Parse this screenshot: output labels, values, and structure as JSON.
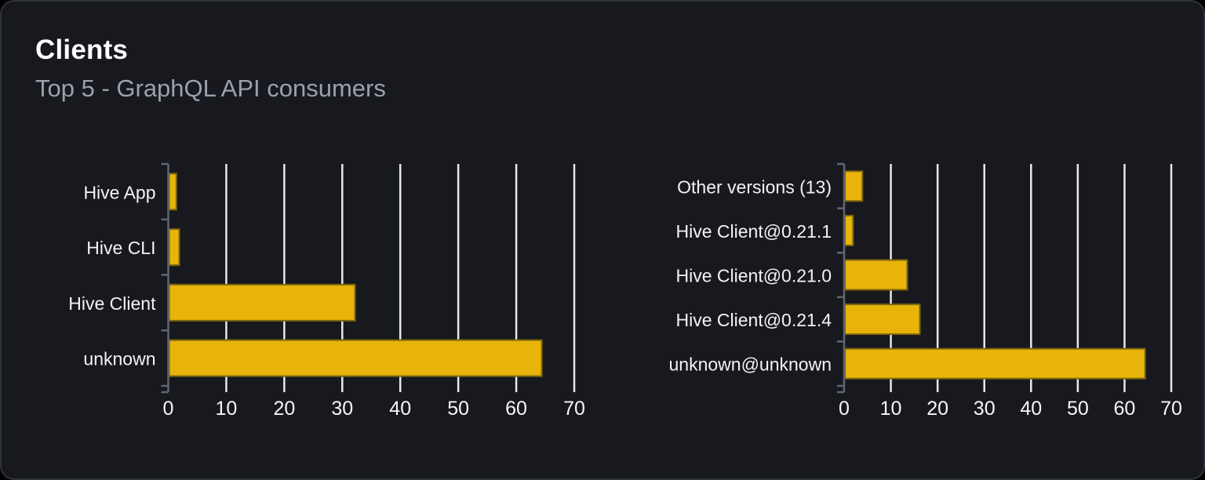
{
  "header": {
    "title": "Clients",
    "subtitle": "Top 5 - GraphQL API consumers"
  },
  "colors": {
    "page_bg": "#000000",
    "card_bg": "#17191e",
    "card_border": "#2e3138",
    "title": "#ffffff",
    "subtitle": "#9aa1ab",
    "bar_fill": "#e8b40a",
    "bar_stroke": "#7c660d",
    "gridline": "#e6e8ec",
    "category_axis": "#606570",
    "category_label": "#f2f3f5",
    "tick_label": "#f5f6f7"
  },
  "chart_data": [
    {
      "type": "bar",
      "orientation": "horizontal",
      "categories": [
        "Hive App",
        "Hive CLI",
        "Hive Client",
        "unknown"
      ],
      "values": [
        1.4,
        1.9,
        32.2,
        64.4
      ],
      "xticks": [
        0,
        10,
        20,
        30,
        40,
        50,
        60,
        70
      ],
      "xlim": [
        0,
        70
      ],
      "grid": true,
      "legend": "none",
      "bar_color": "#e8b40a"
    },
    {
      "type": "bar",
      "orientation": "horizontal",
      "categories": [
        "Other versions (13)",
        "Hive Client@0.21.1",
        "Hive Client@0.21.0",
        "Hive Client@0.21.4",
        "unknown@unknown"
      ],
      "values": [
        3.9,
        1.9,
        13.5,
        16.2,
        64.4
      ],
      "xticks": [
        0,
        10,
        20,
        30,
        40,
        50,
        60,
        70
      ],
      "xlim": [
        0,
        70
      ],
      "grid": true,
      "legend": "none",
      "bar_color": "#e8b40a"
    }
  ]
}
